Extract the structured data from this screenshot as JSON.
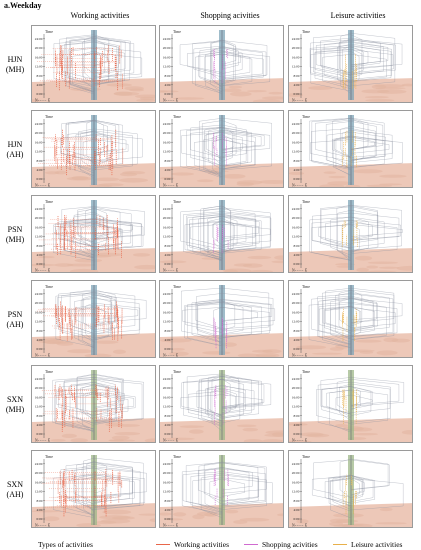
{
  "title": "a.Weekday",
  "columns": [
    {
      "label": "Working activities",
      "key": "working"
    },
    {
      "label": "Shopping acivities",
      "key": "shopping"
    },
    {
      "label": "Leisure activities",
      "key": "leisure"
    }
  ],
  "rows": [
    {
      "line1": "HJN",
      "line2": "(MH)"
    },
    {
      "line1": "HJN",
      "line2": "(AH)"
    },
    {
      "line1": "PSN",
      "line2": "(MH)"
    },
    {
      "line1": "PSN",
      "line2": "(AH)"
    },
    {
      "line1": "SXN",
      "line2": "(MH)"
    },
    {
      "line1": "SXN",
      "line2": "(AH)"
    }
  ],
  "axis": {
    "label": "Time",
    "ticks": [
      "0:00",
      "4:00",
      "8:00",
      "12:00",
      "16:00",
      "20:00",
      "24:00"
    ],
    "north": "N",
    "east": "E"
  },
  "legend": {
    "title": "Types of activities",
    "items": [
      {
        "label": "Working activities",
        "color": "#e8664a"
      },
      {
        "label": "Shopping acivities",
        "color": "#d06ad0"
      },
      {
        "label": "Leisure activities",
        "color": "#e8b04a"
      }
    ]
  },
  "colors": {
    "working": "#e8664a",
    "shopping": "#d06ad0",
    "leisure": "#e8b04a",
    "ground": "#edc8b8",
    "trace": "#8a8fa0",
    "pole_blue": "#7fa6b8",
    "pole_green": "#9fb88a"
  }
}
